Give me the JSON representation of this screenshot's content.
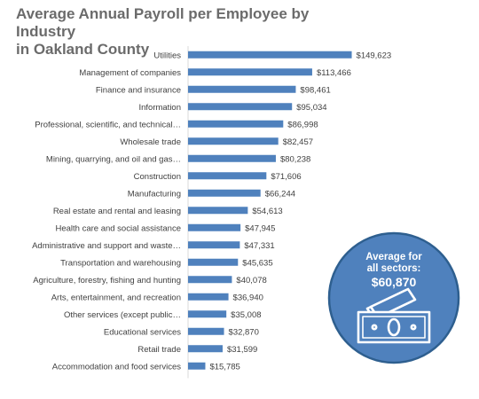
{
  "title_line1": "Average Annual Payroll per Employee by Industry",
  "title_line2": "in Oakland County",
  "badge": {
    "line1": "Average for",
    "line2": "all sectors:",
    "value": "$60,870",
    "icon": "money-bills-icon"
  },
  "colors": {
    "bar": "#4f81bd",
    "badge_fill": "#4f81bd",
    "badge_border": "#2e5f8f"
  },
  "chart_data": {
    "type": "bar",
    "orientation": "horizontal",
    "categories": [
      "Utilities",
      "Management of companies",
      "Finance and insurance",
      "Information",
      "Professional, scientific, and technical…",
      "Wholesale trade",
      "Mining, quarrying, and oil and gas…",
      "Construction",
      "Manufacturing",
      "Real estate and rental and leasing",
      "Health care and social assistance",
      "Administrative and support and waste…",
      "Transportation and warehousing",
      "Agriculture, forestry, fishing and hunting",
      "Arts, entertainment, and recreation",
      "Other services (except public…",
      "Educational services",
      "Retail trade",
      "Accommodation and food services"
    ],
    "values": [
      149623,
      113466,
      98461,
      95034,
      86998,
      82457,
      80238,
      71606,
      66244,
      54613,
      47945,
      47331,
      45635,
      40078,
      36940,
      35008,
      32870,
      31599,
      15785
    ],
    "value_labels": [
      "$149,623",
      "$113,466",
      "$98,461",
      "$95,034",
      "$86,998",
      "$82,457",
      "$80,238",
      "$71,606",
      "$66,244",
      "$54,613",
      "$47,945",
      "$47,331",
      "$45,635",
      "$40,078",
      "$36,940",
      "$35,008",
      "$32,870",
      "$31,599",
      "$15,785"
    ],
    "xlim": [
      0,
      160000
    ],
    "grid": false,
    "legend": "none"
  }
}
